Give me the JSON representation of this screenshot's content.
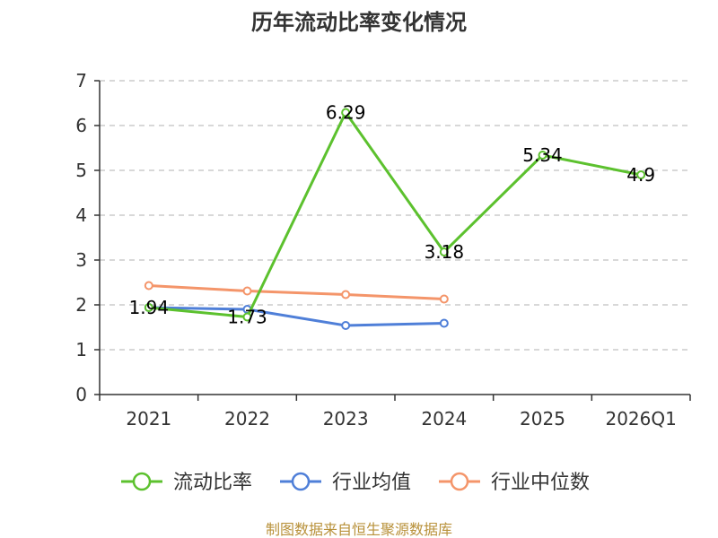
{
  "chart_data": {
    "type": "line",
    "title": "历年流动比率变化情况",
    "categories": [
      "2021",
      "2022",
      "2023",
      "2024",
      "2025",
      "2026Q1"
    ],
    "ylim": [
      0,
      7
    ],
    "yticks": [
      "0",
      "1",
      "2",
      "3",
      "4",
      "5",
      "6",
      "7"
    ],
    "grid": true,
    "legend_position": "bottom",
    "series": [
      {
        "name": "流动比率",
        "color": "#5cc12e",
        "values": [
          1.94,
          1.73,
          6.29,
          3.18,
          5.34,
          4.9
        ],
        "labels": [
          "1.94",
          "1.73",
          "6.29",
          "3.18",
          "5.34",
          "4.9"
        ]
      },
      {
        "name": "行业均值",
        "color": "#4f7fd8",
        "values": [
          1.94,
          1.9,
          1.54,
          1.59,
          null,
          null
        ]
      },
      {
        "name": "行业中位数",
        "color": "#f4956a",
        "values": [
          2.43,
          2.31,
          2.23,
          2.13,
          null,
          null
        ]
      }
    ]
  },
  "source_text": "制图数据来自恒生聚源数据库"
}
